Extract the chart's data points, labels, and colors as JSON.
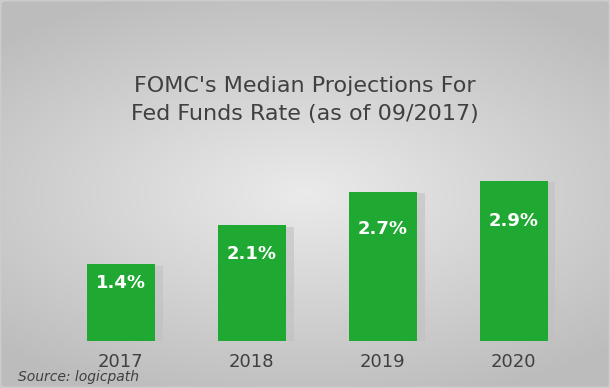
{
  "categories": [
    "2017",
    "2018",
    "2019",
    "2020"
  ],
  "values": [
    1.4,
    2.1,
    2.7,
    2.9
  ],
  "labels": [
    "1.4%",
    "2.1%",
    "2.7%",
    "2.9%"
  ],
  "bar_color": "#1fa832",
  "title_line1": "FOMC's Median Projections For",
  "title_line2": "Fed Funds Rate (as of 09/2017)",
  "source_text": "Source: logicpath",
  "title_fontsize": 16,
  "label_fontsize": 13,
  "tick_fontsize": 13,
  "source_fontsize": 10,
  "ylim": [
    0,
    3.5
  ],
  "text_color": "#404040",
  "bar_label_color": "#ffffff",
  "shadow_color": "#c0c0c0",
  "border_color": "#cccccc",
  "bg_light": "#f8f8f8",
  "bg_dark": "#c8c8c8"
}
